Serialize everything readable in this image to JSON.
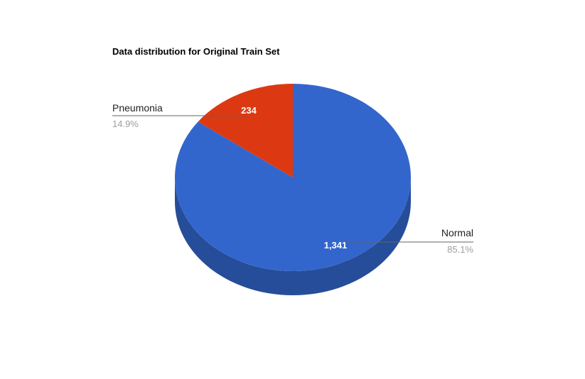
{
  "chart_data": {
    "type": "pie",
    "title": "Data distribution for Original Train Set",
    "is_3d": true,
    "legend": "labeled",
    "slices": [
      {
        "label": "Normal",
        "value": 1341,
        "value_label": "1,341",
        "percent_label": "85.1%",
        "color": "#3366cc",
        "side_color": "#264d99"
      },
      {
        "label": "Pneumonia",
        "value": 234,
        "value_label": "234",
        "percent_label": "14.9%",
        "color": "#dc3912",
        "side_color": "#a52b0e"
      }
    ]
  }
}
